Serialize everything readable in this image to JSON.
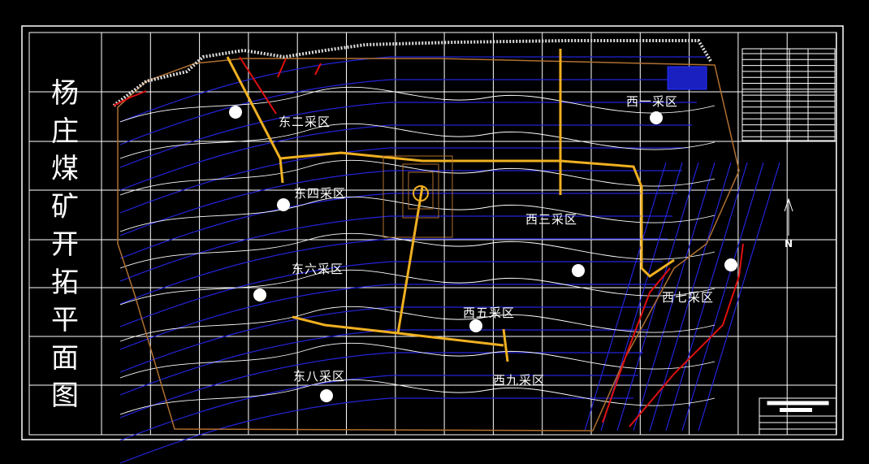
{
  "title": {
    "chars": [
      "杨",
      "庄",
      "煤",
      "矿",
      "开",
      "拓",
      "平",
      "面",
      "图"
    ]
  },
  "zones": [
    {
      "id": "east-2",
      "label": "东二采区"
    },
    {
      "id": "west-1",
      "label": "西一采区"
    },
    {
      "id": "east-4",
      "label": "东四采区"
    },
    {
      "id": "west-3",
      "label": "西三采区"
    },
    {
      "id": "east-6",
      "label": "东六采区"
    },
    {
      "id": "west-7",
      "label": "西七采区"
    },
    {
      "id": "west-5",
      "label": "西五采区"
    },
    {
      "id": "east-8",
      "label": "东八采区"
    },
    {
      "id": "west-9",
      "label": "西九采区"
    }
  ],
  "north_arrow": {
    "label": "N"
  },
  "colors": {
    "background": "#000000",
    "grid": "#ffffff",
    "seam_contours": "#2020d0",
    "roadways": "#f0b020",
    "boundary": "#b07030",
    "faults": "#e01010",
    "terrain": "#ffffff"
  }
}
